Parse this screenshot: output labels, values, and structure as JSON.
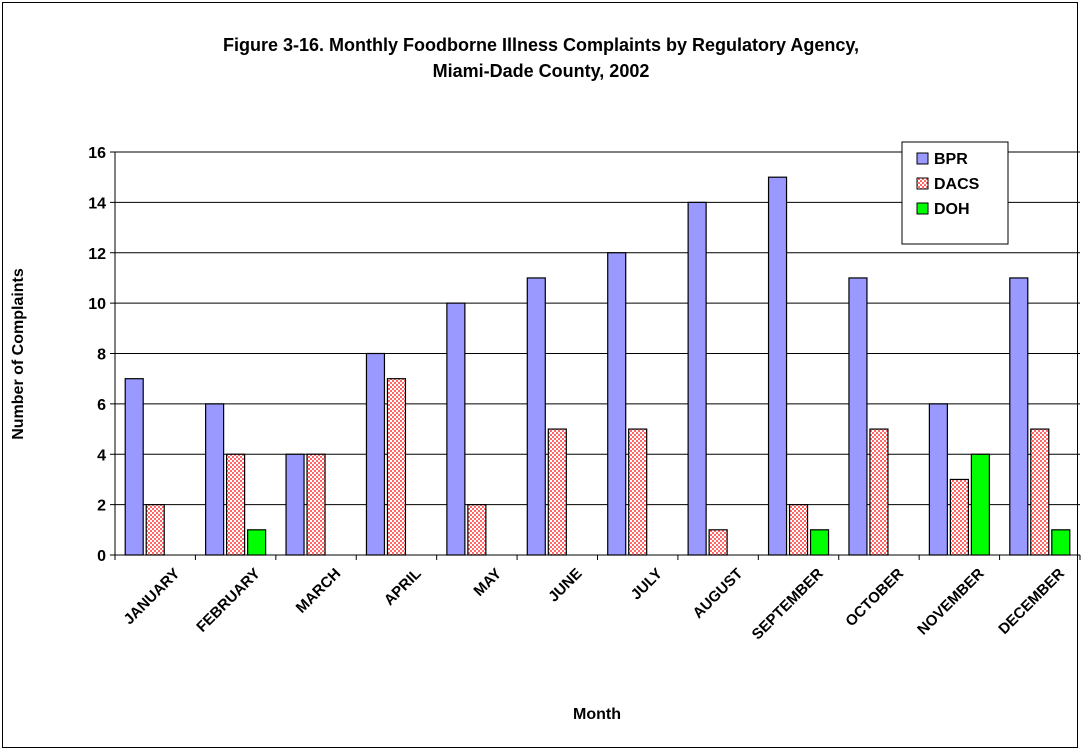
{
  "chart_data": {
    "type": "bar",
    "title": "Figure 3-16.  Monthly Foodborne Illness Complaints by Regulatory Agency,",
    "subtitle": "Miami-Dade County, 2002",
    "xlabel": "Month",
    "ylabel": "Number of Complaints",
    "ylim": [
      0,
      16
    ],
    "yticks": [
      "0",
      "2",
      "4",
      "6",
      "8",
      "10",
      "12",
      "14",
      "16"
    ],
    "categories": [
      "JANUARY",
      "FEBRUARY",
      "MARCH",
      "APRIL",
      "MAY",
      "JUNE",
      "JULY",
      "AUGUST",
      "SEPTEMBER",
      "OCTOBER",
      "NOVEMBER",
      "DECEMBER"
    ],
    "series": [
      {
        "name": "BPR",
        "color": "#9999ff",
        "pattern": "solid",
        "values": [
          7,
          6,
          4,
          8,
          10,
          11,
          12,
          14,
          15,
          11,
          6,
          11
        ]
      },
      {
        "name": "DACS",
        "color": "#ff6666",
        "pattern": "checkered",
        "values": [
          2,
          4,
          4,
          7,
          2,
          5,
          5,
          1,
          2,
          5,
          3,
          5
        ]
      },
      {
        "name": "DOH",
        "color": "#00ff00",
        "pattern": "solid",
        "values": [
          0,
          1,
          0,
          0,
          0,
          0,
          0,
          0,
          1,
          0,
          4,
          1
        ]
      }
    ],
    "grid": true,
    "legend_position": "top-right"
  }
}
